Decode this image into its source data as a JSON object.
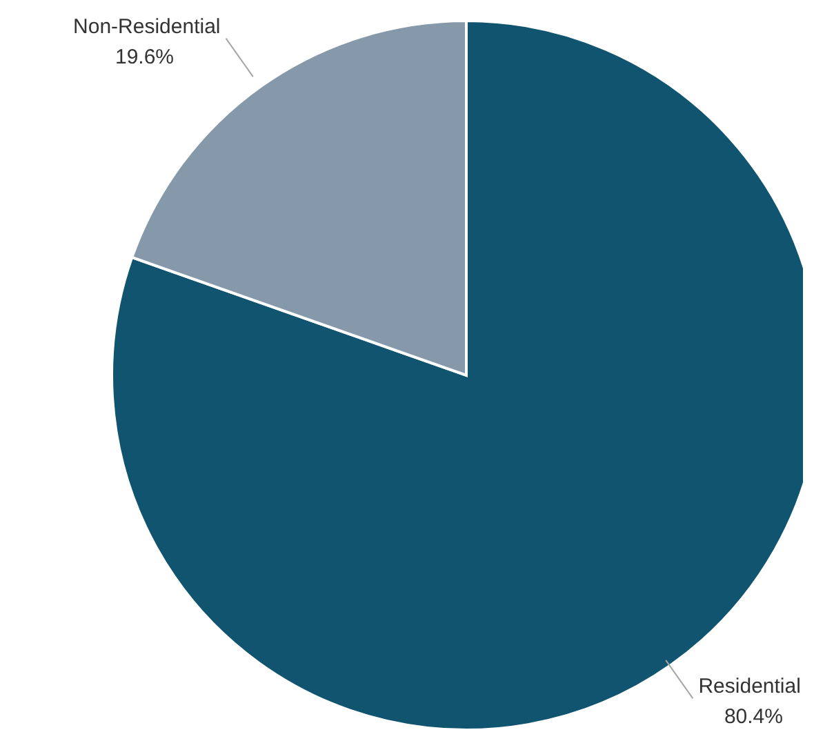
{
  "chart_data": {
    "type": "pie",
    "categories": [
      "Residential",
      "Non-Residential"
    ],
    "values": [
      80.4,
      19.6
    ],
    "colors": [
      "#11546f",
      "#8599ab"
    ],
    "value_labels": [
      "80.4%",
      "19.6%"
    ],
    "legend": false
  }
}
